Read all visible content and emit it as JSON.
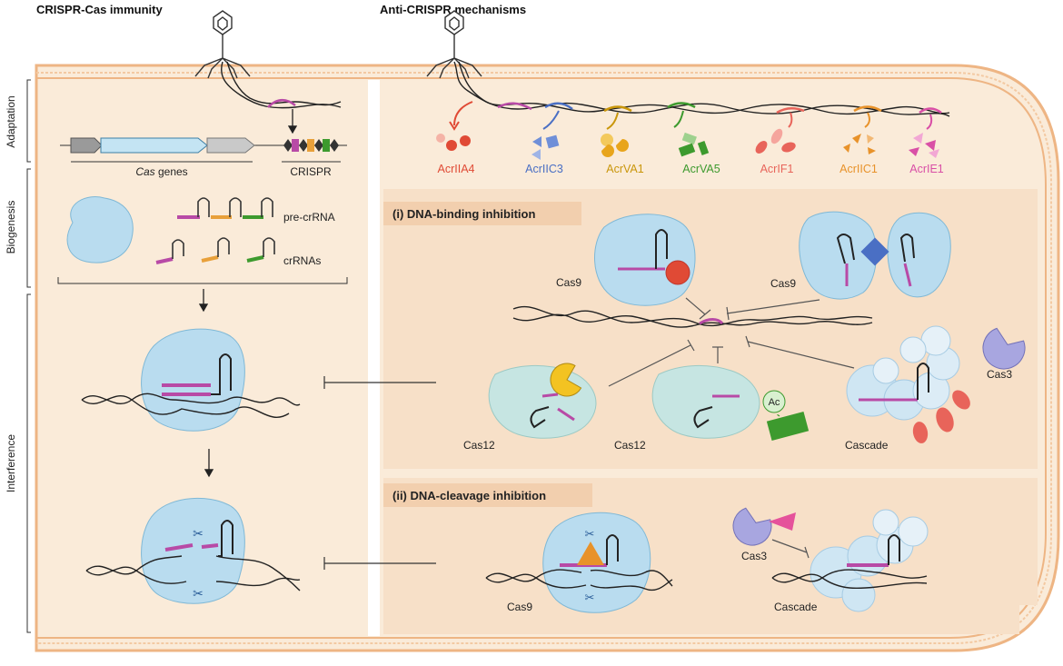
{
  "headers": {
    "left": "CRISPR-Cas immunity",
    "right": "Anti-CRISPR mechanisms"
  },
  "stages": [
    "Adaptation",
    "Biogenesis",
    "Interference"
  ],
  "locus": {
    "cas_genes_italic": "Cas",
    "cas_genes_rest": " genes",
    "crispr": "CRISPR"
  },
  "rna": {
    "pre": "pre-crRNA",
    "mature": "crRNAs"
  },
  "acrs": [
    {
      "name": "AcrIIA4",
      "color": "#e04a35"
    },
    {
      "name": "AcrIIC3",
      "color": "#4a6fc4"
    },
    {
      "name": "AcrVA1",
      "color": "#c9960a"
    },
    {
      "name": "AcrVA5",
      "color": "#3d9a2e"
    },
    {
      "name": "AcrIF1",
      "color": "#e8645a"
    },
    {
      "name": "AcrIIC1",
      "color": "#e8922a"
    },
    {
      "name": "AcrIE1",
      "color": "#d94fa6"
    }
  ],
  "sections": {
    "binding": "(i) DNA-binding inhibition",
    "cleavage": "(ii) DNA-cleavage inhibition"
  },
  "proteins": {
    "cas9_a": "Cas9",
    "cas9_b": "Cas9",
    "cas12_a": "Cas12",
    "cas12_b": "Cas12",
    "cascade_a": "Cascade",
    "cas3_a": "Cas3",
    "acetyl": "Ac",
    "cas9_c": "Cas9",
    "cas3_b": "Cas3",
    "cascade_b": "Cascade"
  },
  "colors": {
    "cell": "#faebd9",
    "membrane": "#f0b98c",
    "panel": "#f8e3cc",
    "cas9": "#b9dcef",
    "cas12": "#c6e5e2",
    "cascade": "#cfe6f3",
    "crrna": "#b84aa6"
  }
}
